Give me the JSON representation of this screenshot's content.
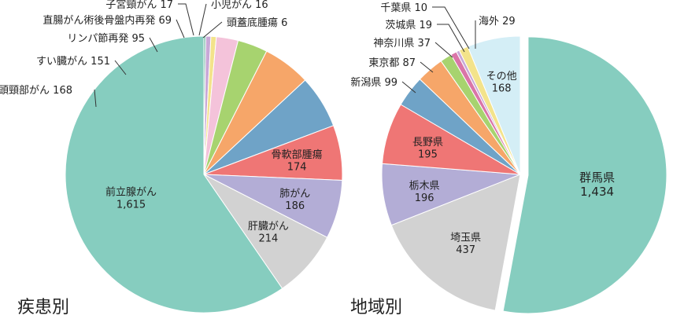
{
  "chart_data": [
    {
      "type": "pie",
      "title": "疾患別",
      "categories": [
        "前立腺がん",
        "肝臓がん",
        "肺がん",
        "骨軟部腫瘍",
        "頭頸部がん",
        "すい臓がん",
        "リンパ節再発",
        "直腸がん術後骨盤内再発",
        "子宮頸がん",
        "小児がん",
        "頭蓋底腫瘍"
      ],
      "values": [
        1615,
        214,
        186,
        174,
        168,
        151,
        95,
        69,
        17,
        16,
        6
      ],
      "display_values": [
        "1,615",
        "214",
        "186",
        "174",
        "168",
        "151",
        "95",
        "69",
        "17",
        "16",
        "6"
      ],
      "colors": [
        "#86CDBF",
        "#D2D2D2",
        "#B3ADD6",
        "#EF7675",
        "#6FA3C7",
        "#F6A669",
        "#A7D36F",
        "#F4C3DA",
        "#F3E38B",
        "#C8A8D7",
        "#6FB7A1"
      ]
    },
    {
      "type": "pie",
      "title": "地域別",
      "categories": [
        "群馬県",
        "埼玉県",
        "栃木県",
        "長野県",
        "新潟県",
        "東京都",
        "神奈川県",
        "茨城県",
        "千葉県",
        "海外",
        "その他"
      ],
      "values": [
        1434,
        437,
        196,
        195,
        99,
        87,
        37,
        19,
        10,
        29,
        168
      ],
      "display_values": [
        "1,434",
        "437",
        "196",
        "195",
        "99",
        "87",
        "37",
        "19",
        "10",
        "29",
        "168"
      ],
      "colors": [
        "#86CDBF",
        "#D2D2D2",
        "#B3ADD6",
        "#EF7675",
        "#6FA3C7",
        "#F6A669",
        "#A7D36F",
        "#DA75A8",
        "#C8A8D7",
        "#F3E38B",
        "#D4EEF6"
      ]
    }
  ]
}
